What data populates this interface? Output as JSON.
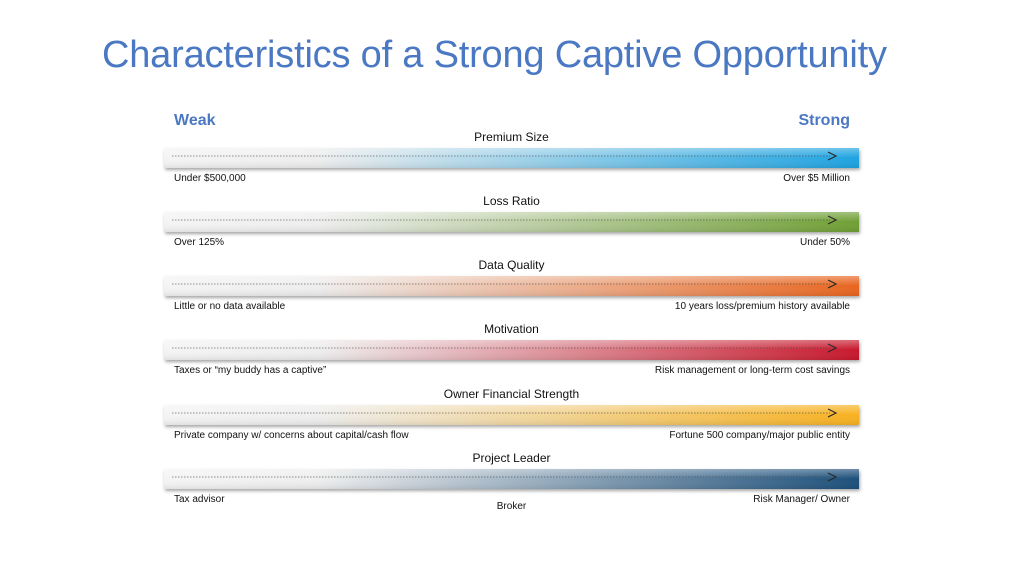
{
  "title": "Characteristics of a Strong Captive Opportunity",
  "scale": {
    "weak": "Weak",
    "strong": "Strong"
  },
  "rows": [
    {
      "title": "Premium Size",
      "left": "Under $500,000",
      "right": "Over $5 Million",
      "middle": "",
      "color": "#1ea3e1"
    },
    {
      "title": "Loss Ratio",
      "left": "Over 125%",
      "right": "Under 50%",
      "middle": "",
      "color": "#6f9f34"
    },
    {
      "title": "Data Quality",
      "left": "Little or no data available",
      "right": "10 years loss/premium history available",
      "middle": "",
      "color": "#e8651f"
    },
    {
      "title": "Motivation",
      "left": "Taxes or “my buddy has a captive”",
      "right": "Risk management or long-term cost savings",
      "middle": "",
      "color": "#c8182c"
    },
    {
      "title": "Owner Financial Strength",
      "left": "Private company w/ concerns about capital/cash flow",
      "right": "Fortune 500 company/major public entity",
      "middle": "",
      "color": "#f7b11f"
    },
    {
      "title": "Project Leader",
      "left": "Tax advisor",
      "right": "Risk Manager/ Owner",
      "middle": "Broker",
      "color": "#1c4f7a"
    }
  ]
}
